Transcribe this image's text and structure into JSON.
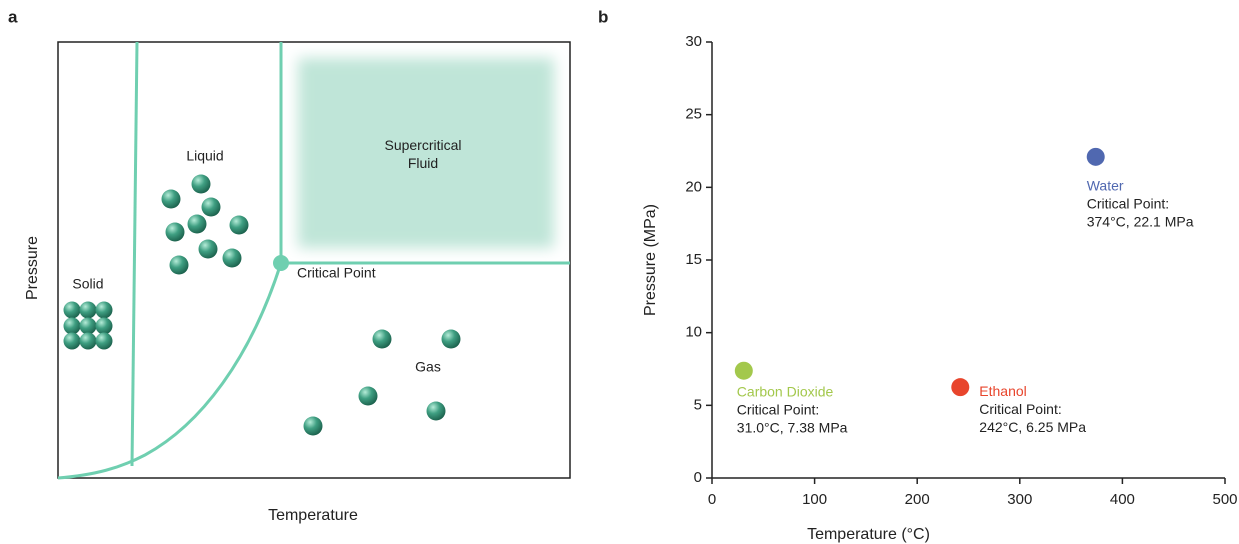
{
  "chart_data": [
    {
      "type": "diagram",
      "panel": "a",
      "xlabel": "Temperature",
      "ylabel": "Pressure",
      "regions": [
        "Solid",
        "Liquid",
        "Supercritical Fluid",
        "Gas"
      ],
      "point_label": "Critical Point"
    },
    {
      "type": "scatter",
      "panel": "b",
      "xlabel": "Temperature (°C)",
      "ylabel": "Pressure (MPa)",
      "xlim": [
        0,
        500
      ],
      "xticks": [
        0,
        100,
        200,
        300,
        400,
        500
      ],
      "ylim": [
        0,
        30
      ],
      "yticks": [
        0,
        5,
        10,
        15,
        20,
        25,
        30
      ],
      "series": [
        {
          "name": "Carbon Dioxide",
          "color": "#a3c84c",
          "x": [
            31.0
          ],
          "values": [
            7.38
          ],
          "annotation": [
            "Critical Point:",
            "31.0°C, 7.38 MPa"
          ]
        },
        {
          "name": "Ethanol",
          "color": "#e8452c",
          "x": [
            242
          ],
          "values": [
            6.25
          ],
          "annotation": [
            "Critical Point:",
            "242°C, 6.25 MPa"
          ]
        },
        {
          "name": "Water",
          "color": "#5068b0",
          "x": [
            374
          ],
          "values": [
            22.1
          ],
          "annotation": [
            "Critical Point:",
            "374°C, 22.1 MPa"
          ]
        }
      ]
    }
  ]
}
